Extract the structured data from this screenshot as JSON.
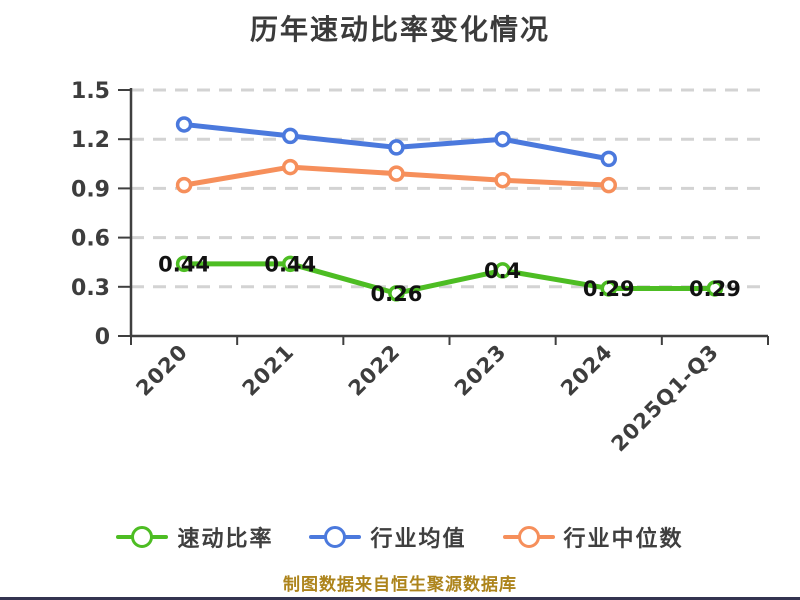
{
  "title": "历年速动比率变化情况",
  "footer": "制图数据来自恒生聚源数据库",
  "colors": {
    "title_text": "#3b3b3b",
    "axis": "#3f3f3f",
    "axis_label": "#3d3d3d",
    "gridline": "#d3d3d3",
    "data_label": "#111111",
    "footer_text": "#ad841c",
    "series_quick_ratio": "#4dbd23",
    "series_industry_mean": "#4b79dd",
    "series_industry_median": "#f68f5b",
    "background": "#ffffff"
  },
  "chart_data": {
    "type": "line",
    "title": "历年速动比率变化情况",
    "categories": [
      "2020",
      "2021",
      "2022",
      "2023",
      "2024",
      "2025Q1-Q3"
    ],
    "series": [
      {
        "name": "速动比率",
        "color": "#4dbd23",
        "values": [
          0.44,
          0.44,
          0.26,
          0.4,
          0.29,
          0.29
        ],
        "data_labels": [
          "0.44",
          "0.44",
          "0.26",
          "0.4",
          "0.29",
          "0.29"
        ],
        "show_labels": true
      },
      {
        "name": "行业均值",
        "color": "#4b79dd",
        "values": [
          1.29,
          1.22,
          1.15,
          1.2,
          1.08,
          null
        ],
        "show_labels": false
      },
      {
        "name": "行业中位数",
        "color": "#f68f5b",
        "values": [
          0.92,
          1.03,
          0.99,
          0.95,
          0.92,
          null
        ],
        "show_labels": false
      }
    ],
    "xlabel": "",
    "ylabel": "",
    "ylim": [
      0,
      1.5
    ],
    "yticks": [
      "0",
      "0.3",
      "0.6",
      "0.9",
      "1.2",
      "1.5"
    ],
    "grid": "horizontal dashed",
    "x_label_rotation": 45,
    "legend_position": "bottom",
    "point_style": "hollow-circle"
  }
}
